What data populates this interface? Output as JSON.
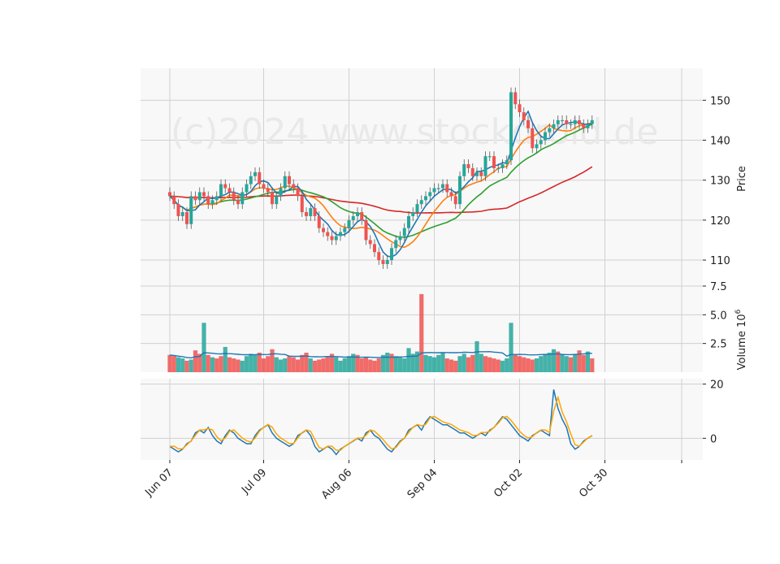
{
  "chart_data": {
    "type": "candlestick",
    "watermark": "(c)2024 www.stockdroid.de",
    "x_ticks": [
      {
        "label": "Jun 07",
        "index": 0
      },
      {
        "label": "Jul 09",
        "index": 22
      },
      {
        "label": "Aug 06",
        "index": 42
      },
      {
        "label": "Sep 04",
        "index": 62
      },
      {
        "label": "Oct 02",
        "index": 82
      },
      {
        "label": "Oct 30",
        "index": 102
      },
      {
        "label": "",
        "index": 120
      }
    ],
    "price_panel": {
      "ylabel": "Price",
      "ylim": [
        103.5,
        158
      ],
      "yticks": [
        110,
        120,
        130,
        140,
        150
      ],
      "grid": true,
      "colors": {
        "up": "#26a69a",
        "down": "#ef5350",
        "ma_short": "#1f77b4",
        "ma_mid": "#ff7f0e",
        "ma_long": "#2ca02c",
        "ma_longest": "#d62728"
      },
      "series_close": [
        126,
        124,
        121,
        122,
        119,
        126,
        125,
        127,
        126,
        124,
        125,
        126,
        129,
        128,
        127,
        125,
        124,
        127,
        129,
        131,
        132,
        129,
        128,
        127,
        124,
        126,
        128,
        131,
        129,
        128,
        126,
        122,
        121,
        123,
        121,
        118,
        117,
        116,
        115,
        116,
        117,
        118,
        120,
        121,
        122,
        120,
        115,
        114,
        112,
        110,
        109,
        110,
        113,
        115,
        116,
        118,
        121,
        122,
        124,
        125,
        126,
        127,
        128,
        128,
        129,
        127,
        126,
        124,
        131,
        134,
        133,
        131,
        132,
        131,
        136,
        136,
        133,
        133,
        134,
        135,
        152,
        149,
        147,
        145,
        143,
        138,
        139,
        140,
        142,
        143,
        144,
        145,
        145,
        144,
        144,
        145,
        144,
        143,
        144,
        145
      ]
    },
    "volume_panel": {
      "ylabel": "Volume",
      "exponent_label": "10",
      "exponent_power": "6",
      "ylim": [
        0,
        7.5
      ],
      "yticks": [
        2.5,
        5.0,
        7.5
      ],
      "tick_labels": [
        "2.5",
        "5.0",
        "7.5"
      ],
      "grid": true,
      "colors": {
        "up": "#26a69a",
        "down": "#ef5350",
        "avg_line": "#1f77b4"
      },
      "volumes": [
        1.5,
        1.4,
        1.3,
        1.2,
        1.0,
        1.1,
        1.9,
        1.6,
        4.3,
        1.5,
        1.3,
        1.2,
        1.4,
        2.2,
        1.3,
        1.2,
        1.1,
        1.0,
        1.4,
        1.6,
        1.5,
        1.7,
        1.2,
        1.4,
        2.0,
        1.3,
        1.1,
        1.2,
        1.4,
        1.3,
        1.1,
        1.5,
        1.7,
        1.2,
        1.0,
        1.1,
        1.2,
        1.4,
        1.6,
        1.3,
        1.0,
        1.2,
        1.4,
        1.6,
        1.5,
        1.2,
        1.3,
        1.1,
        1.0,
        1.2,
        1.5,
        1.7,
        1.6,
        1.4,
        1.3,
        1.2,
        2.1,
        1.6,
        1.8,
        6.8,
        1.5,
        1.4,
        1.3,
        1.5,
        1.7,
        1.2,
        1.1,
        1.0,
        1.4,
        1.6,
        1.3,
        1.5,
        2.7,
        1.6,
        1.4,
        1.3,
        1.2,
        1.1,
        1.0,
        1.2,
        4.3,
        1.5,
        1.4,
        1.3,
        1.2,
        1.1,
        1.2,
        1.4,
        1.6,
        1.7,
        2.0,
        1.8,
        1.6,
        1.4,
        1.3,
        1.6,
        1.9,
        1.5,
        1.8,
        1.2
      ],
      "volume_up": [
        false,
        false,
        true,
        true,
        false,
        true,
        false,
        false,
        true,
        false,
        true,
        false,
        false,
        true,
        false,
        false,
        false,
        true,
        true,
        true,
        true,
        false,
        false,
        false,
        false,
        true,
        true,
        true,
        false,
        false,
        false,
        false,
        false,
        true,
        false,
        false,
        false,
        false,
        false,
        true,
        true,
        true,
        true,
        true,
        false,
        false,
        false,
        false,
        false,
        false,
        true,
        true,
        false,
        true,
        true,
        true,
        true,
        true,
        true,
        false,
        true,
        true,
        true,
        true,
        true,
        false,
        false,
        false,
        true,
        true,
        false,
        false,
        true,
        true,
        false,
        false,
        false,
        false,
        true,
        true,
        true,
        false,
        false,
        false,
        false,
        false,
        true,
        true,
        true,
        true,
        true,
        false,
        true,
        true,
        false,
        true,
        false,
        false,
        true,
        false
      ]
    },
    "oscillator_panel": {
      "ylim": [
        -8,
        22
      ],
      "yticks": [
        0,
        20
      ],
      "grid": true,
      "colors": {
        "line_a": "#1f77b4",
        "line_b": "#ffa500"
      },
      "line_a": [
        -3,
        -4,
        -5,
        -4,
        -2,
        -1,
        2,
        3,
        2,
        4,
        1,
        -1,
        -2,
        1,
        3,
        2,
        0,
        -1,
        -2,
        -2,
        1,
        3,
        4,
        5,
        2,
        0,
        -1,
        -2,
        -3,
        -2,
        1,
        2,
        3,
        1,
        -3,
        -5,
        -4,
        -3,
        -4,
        -6,
        -4,
        -3,
        -2,
        -1,
        0,
        -1,
        2,
        3,
        1,
        0,
        -2,
        -4,
        -5,
        -3,
        -1,
        0,
        3,
        4,
        5,
        3,
        6,
        8,
        7,
        6,
        5,
        5,
        4,
        3,
        2,
        2,
        1,
        0,
        1,
        2,
        1,
        3,
        4,
        6,
        8,
        7,
        5,
        3,
        1,
        0,
        -1,
        1,
        2,
        3,
        2,
        1,
        18,
        11,
        7,
        4,
        -2,
        -4,
        -3,
        -1,
        0,
        1
      ]
    }
  }
}
